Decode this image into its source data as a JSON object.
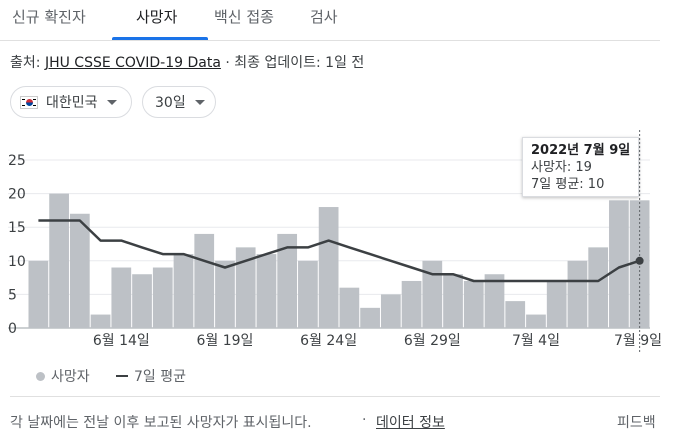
{
  "tabs": [
    {
      "label": "신규 확진자",
      "active": false
    },
    {
      "label": "사망자",
      "active": true
    },
    {
      "label": "백신 접종",
      "active": false
    },
    {
      "label": "검사",
      "active": false
    }
  ],
  "source": {
    "prefix": "출처: ",
    "link": "JHU CSSE COVID-19 Data",
    "separator": " · ",
    "update": "최종 업데이트: 1일 전"
  },
  "filters": {
    "country": "대한민국",
    "country_icon": "south-korea-flag-icon",
    "period": "30일"
  },
  "tooltip": {
    "title": "2022년 7월 9일",
    "line1": "사망자: 19",
    "line2": "7일 평균: 10"
  },
  "legend": {
    "bars": "사망자",
    "line": "7일 평균"
  },
  "footer": {
    "note": "각 날짜에는 전날 이후 보고된 사망자가 표시됩니다.",
    "separator": "·",
    "data_link": "데이터 정보",
    "feedback": "피드백"
  },
  "colors": {
    "bar": "#bdc1c6",
    "average_line": "#3c4043",
    "tab_accent": "#1a73e8"
  },
  "chart_data": {
    "type": "bar",
    "categories": [
      "6월 10일",
      "6월 11일",
      "6월 12일",
      "6월 13일",
      "6월 14일",
      "6월 15일",
      "6월 16일",
      "6월 17일",
      "6월 18일",
      "6월 19일",
      "6월 20일",
      "6월 21일",
      "6월 22일",
      "6월 23일",
      "6월 24일",
      "6월 25일",
      "6월 26일",
      "6월 27일",
      "6월 28일",
      "6월 29일",
      "6월 30일",
      "7월 1일",
      "7월 2일",
      "7월 3일",
      "7월 4일",
      "7월 5일",
      "7월 6일",
      "7월 7일",
      "7월 8일",
      "7월 9일"
    ],
    "series": [
      {
        "name": "사망자",
        "type": "bar",
        "values": [
          10,
          20,
          17,
          2,
          9,
          8,
          9,
          11,
          14,
          10,
          12,
          11,
          14,
          10,
          18,
          6,
          3,
          5,
          7,
          10,
          8,
          7,
          8,
          4,
          2,
          7,
          10,
          12,
          19,
          19
        ]
      },
      {
        "name": "7일 평균",
        "type": "line",
        "values": [
          16,
          16,
          16,
          13,
          13,
          12,
          11,
          11,
          10,
          9,
          10,
          11,
          12,
          12,
          13,
          12,
          11,
          10,
          9,
          8,
          8,
          7,
          7,
          7,
          7,
          7,
          7,
          7,
          9,
          10
        ]
      }
    ],
    "xtick_labels": [
      "6월 14일",
      "6월 19일",
      "6월 24일",
      "6월 29일",
      "7월 4일",
      "7월 9일"
    ],
    "yticks": [
      0,
      5,
      10,
      15,
      20,
      25
    ],
    "ylim": [
      0,
      25
    ],
    "grid": true,
    "highlighted": "7월 9일"
  }
}
